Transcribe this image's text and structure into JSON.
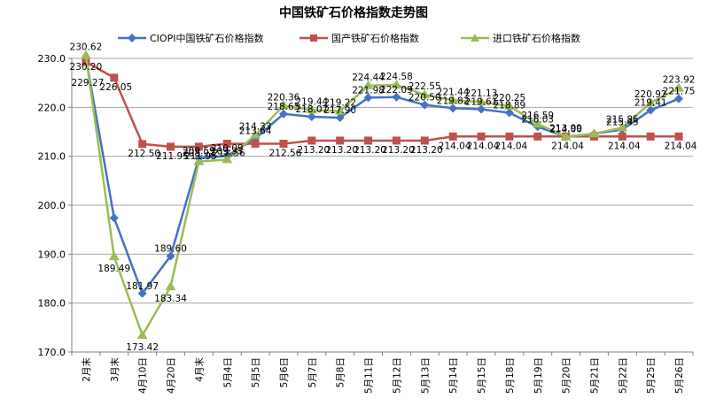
{
  "chart_data": {
    "type": "line",
    "title": "中国铁矿石价格指数走势图",
    "xlabel": "",
    "ylabel": "",
    "ylim": [
      170,
      230
    ],
    "yticks": [
      "170.0",
      "180.0",
      "190.0",
      "200.0",
      "210.0",
      "220.0",
      "230.0"
    ],
    "grid": true,
    "legend": "top",
    "categories": [
      "2月末",
      "3月末",
      "4月10日",
      "4月20日",
      "4月末",
      "5月4日",
      "5月5日",
      "5月6日",
      "5月7日",
      "5月8日",
      "5月11日",
      "5月12日",
      "5月13日",
      "5月14日",
      "5月15日",
      "5月18日",
      "5月19日",
      "5月20日",
      "5月21日",
      "5月22日",
      "5月25日",
      "5月26日"
    ],
    "series": [
      {
        "name": "CIOPI中国铁矿石价格指数",
        "color": "#4472C4",
        "marker": "diamond",
        "values": [
          230.2,
          197.4,
          181.97,
          189.6,
          209.59,
          210.09,
          213.64,
          218.65,
          218.07,
          217.9,
          221.98,
          222.09,
          220.5,
          219.82,
          219.61,
          218.89,
          216.03,
          214.0,
          214.6,
          215.45,
          219.41,
          221.75
        ],
        "labels": [
          "230.20",
          "",
          "181.97",
          "189.60",
          "209.59",
          "210.09",
          "213.64",
          "218.65",
          "218.07",
          "217.90",
          "221.98",
          "222.09",
          "220.50",
          "219.82",
          "219.61",
          "218.89",
          "216.03",
          "214.00",
          "",
          "215.45",
          "219.41",
          "221.75"
        ]
      },
      {
        "name": "国产铁矿石价格指数",
        "color": "#C0504D",
        "marker": "square",
        "values": [
          229.27,
          226.05,
          212.5,
          211.95,
          211.95,
          212.56,
          212.56,
          212.56,
          213.2,
          213.2,
          213.2,
          213.2,
          213.2,
          214.04,
          214.04,
          214.04,
          214.04,
          214.04,
          214.04,
          214.04,
          214.04,
          214.04
        ],
        "labels": [
          "229.27",
          "226.05",
          "212.50",
          "211.95",
          "211.95",
          "212.56",
          "",
          "212.56",
          "213.20",
          "213.20",
          "213.20",
          "213.20",
          "213.20",
          "214.04",
          "214.04",
          "214.04",
          "",
          "214.04",
          "",
          "214.04",
          "",
          "214.04"
        ]
      },
      {
        "name": "进口铁矿石价格指数",
        "color": "#9BBB59",
        "marker": "triangle",
        "values": [
          230.62,
          189.49,
          173.42,
          183.34,
          208.92,
          209.33,
          214.33,
          220.36,
          219.44,
          219.22,
          224.44,
          224.58,
          222.55,
          221.44,
          221.13,
          220.25,
          216.59,
          213.99,
          214.6,
          215.85,
          220.92,
          223.92
        ],
        "labels": [
          "230.62",
          "189.49",
          "173.42",
          "183.34",
          "208.92",
          "209.33",
          "214.33",
          "220.36",
          "219.44",
          "219.22",
          "224.44",
          "224.58",
          "222.55",
          "221.44",
          "221.13",
          "220.25",
          "216.59",
          "213.99",
          "",
          "215.85",
          "220.92",
          "223.92"
        ]
      }
    ]
  }
}
